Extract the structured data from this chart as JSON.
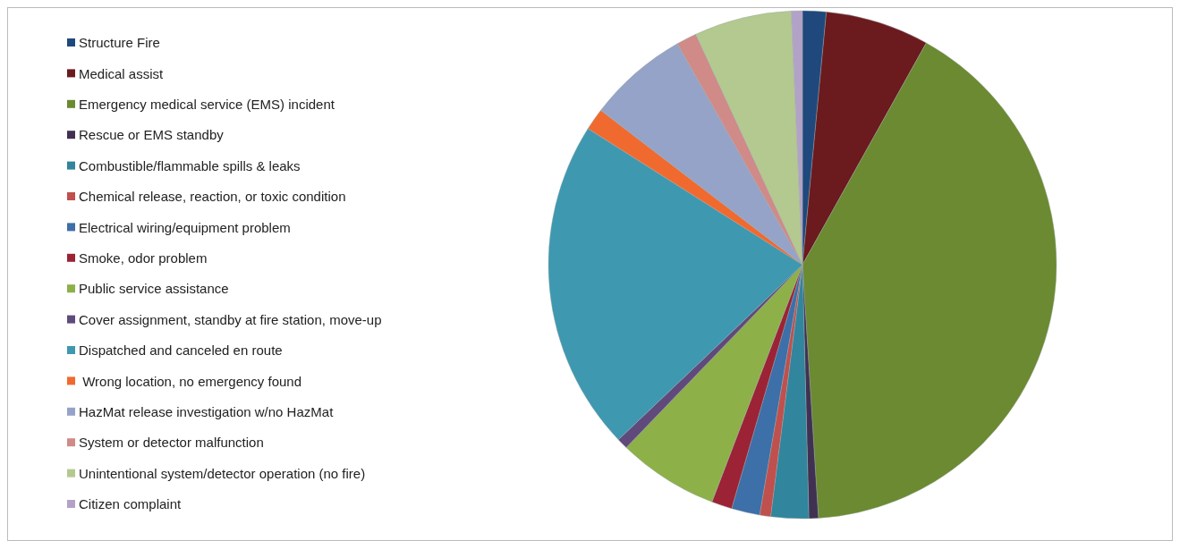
{
  "chart_data": {
    "type": "pie",
    "legend": "left",
    "categories": [
      "Structure Fire",
      "Medical assist",
      "Emergency medical service (EMS) incident",
      "Rescue or EMS standby",
      "Combustible/flammable spills & leaks",
      "Chemical release, reaction, or toxic condition",
      "Electrical wiring/equipment problem",
      "Smoke, odor problem",
      "Public service assistance",
      "Cover assignment, standby at fire station, move-up",
      "Dispatched and canceled en route",
      " Wrong location, no emergency found",
      "HazMat release investigation w/no HazMat",
      "System or detector malfunction",
      "Unintentional system/detector operation (no fire)",
      "Citizen complaint"
    ],
    "values": [
      1.5,
      6.6,
      40.9,
      0.6,
      2.4,
      0.7,
      1.8,
      1.3,
      6.4,
      0.7,
      21.1,
      1.4,
      6.4,
      1.3,
      6.2,
      0.7
    ],
    "colors": [
      "#1f497d",
      "#6b1a1e",
      "#6b8a31",
      "#403152",
      "#31859c",
      "#c0504d",
      "#3d6fa8",
      "#9b2335",
      "#8db049",
      "#604a7b",
      "#3e98b0",
      "#f06a30",
      "#95a3c8",
      "#d08a88",
      "#b4c98f",
      "#b3a2c7"
    ]
  }
}
